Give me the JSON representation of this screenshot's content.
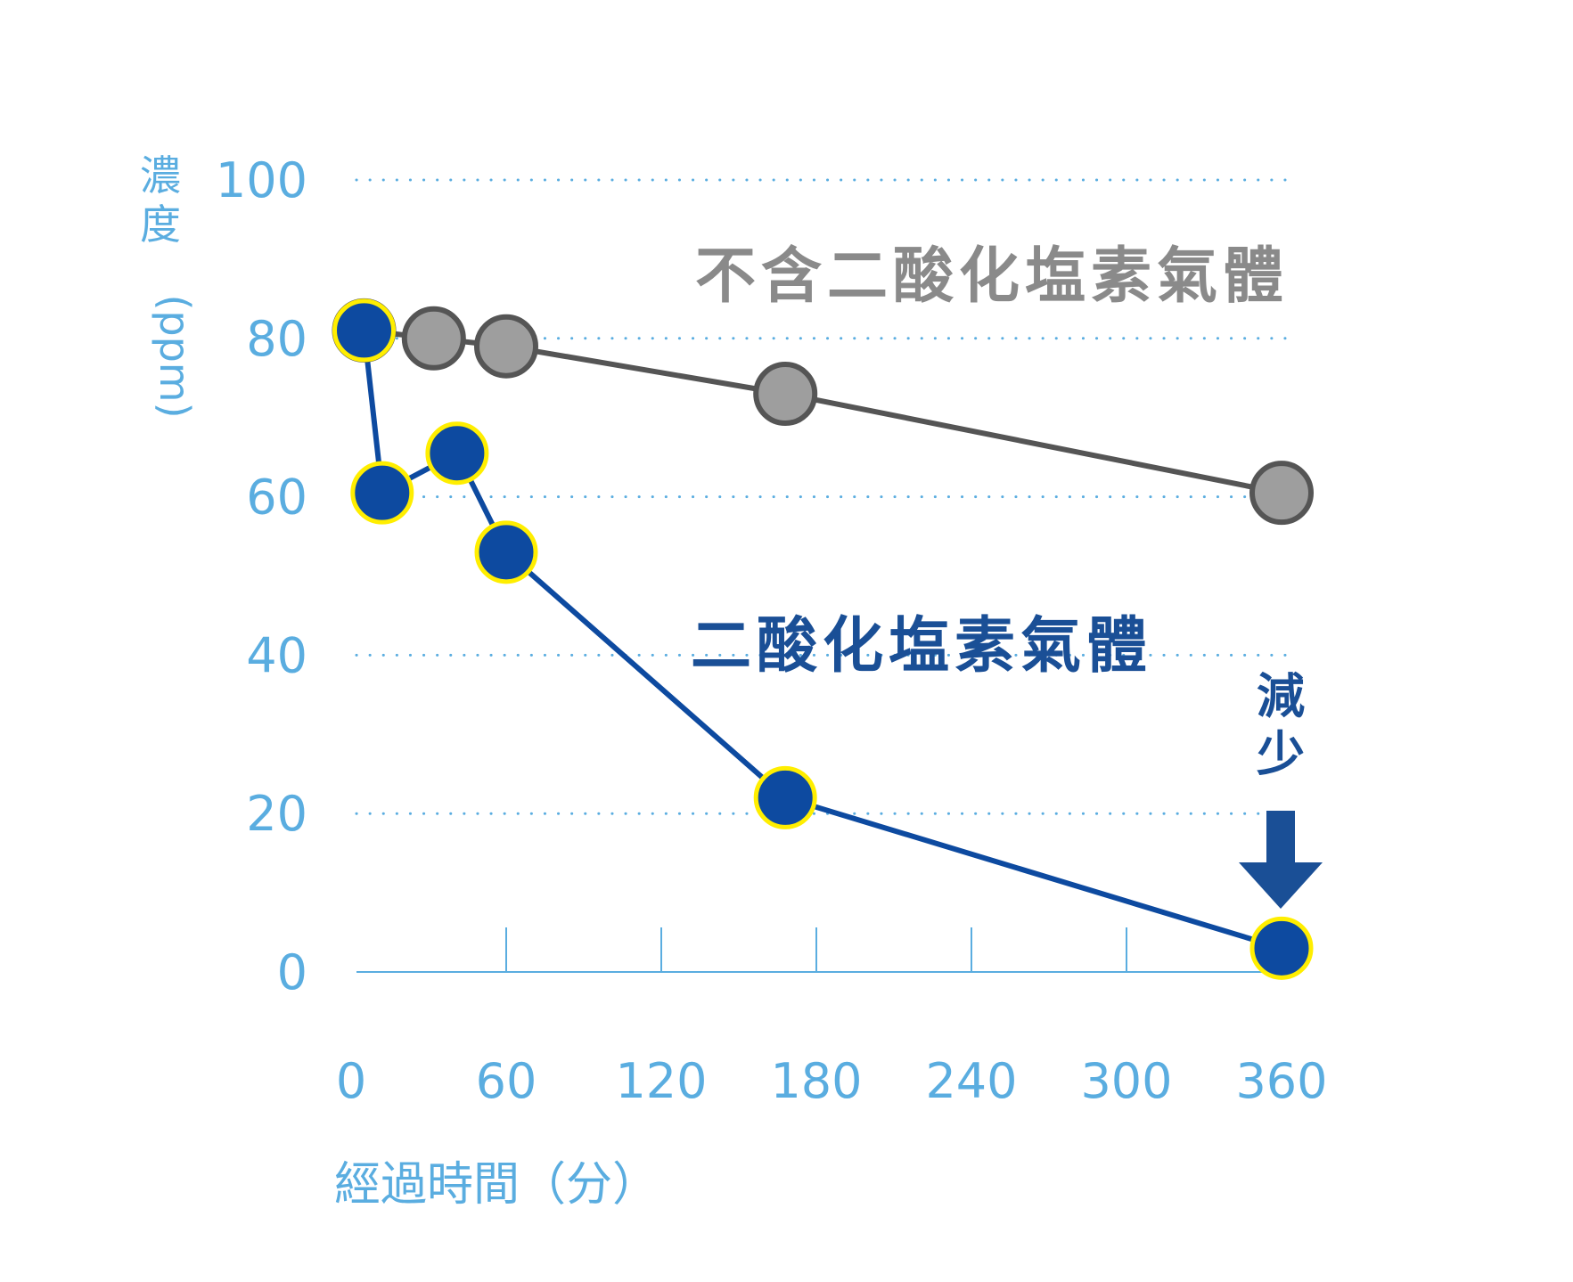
{
  "chart_data": {
    "type": "line",
    "xlabel": "經過時間（分）",
    "ylabel": "濃度（ppm）",
    "xlim": [
      0,
      360
    ],
    "ylim": [
      0,
      100
    ],
    "x_ticks": [
      "0",
      "60",
      "120",
      "180",
      "240",
      "300",
      "360"
    ],
    "y_ticks": [
      "0",
      "20",
      "40",
      "60",
      "80",
      "100"
    ],
    "grid": "horizontal dotted",
    "series": [
      {
        "name": "不含二酸化塩素氣體",
        "color": "#9e9e9e",
        "line_color": "#555555",
        "x": [
          5,
          32,
          60,
          168,
          360
        ],
        "y": [
          81,
          80,
          79,
          73,
          60.5
        ]
      },
      {
        "name": "二酸化塩素氣體",
        "color": "#0d4aa0",
        "marker_edge": "#ffee00",
        "x": [
          5,
          12,
          41,
          60,
          168,
          360
        ],
        "y": [
          81,
          60.5,
          65.5,
          53,
          22,
          3
        ]
      }
    ],
    "annotations": [
      {
        "text_lines": [
          "減",
          "少"
        ],
        "arrow": "down",
        "color": "#1a4f96"
      }
    ]
  }
}
